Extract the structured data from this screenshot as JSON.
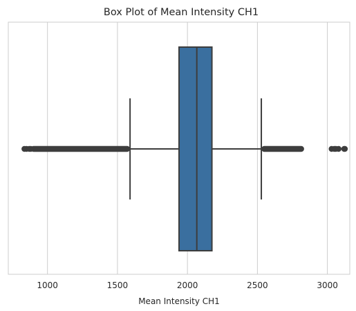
{
  "chart_data": {
    "type": "box",
    "title": "Box Plot of Mean Intensity CH1",
    "xlabel": "Mean Intensity CH1",
    "ylabel": "",
    "orientation": "horizontal",
    "xlim": [
      720,
      3160
    ],
    "x_ticks": [
      1000,
      1500,
      2000,
      2500,
      3000
    ],
    "grid": "vertical",
    "box_color": "#3a6f9f",
    "line_color": "#3d3d3d",
    "grid_color": "#cccccc",
    "box": {
      "whisker_low": 1590,
      "q1": 1940,
      "median": 2067,
      "q3": 2175,
      "whisker_high": 2528
    },
    "outliers_low_range": [
      830,
      1590
    ],
    "outliers_high_range": [
      2528,
      3130
    ],
    "outliers_sparse": [
      835,
      850,
      870,
      880,
      3030,
      3050,
      3060,
      3080,
      3120,
      3125
    ]
  }
}
